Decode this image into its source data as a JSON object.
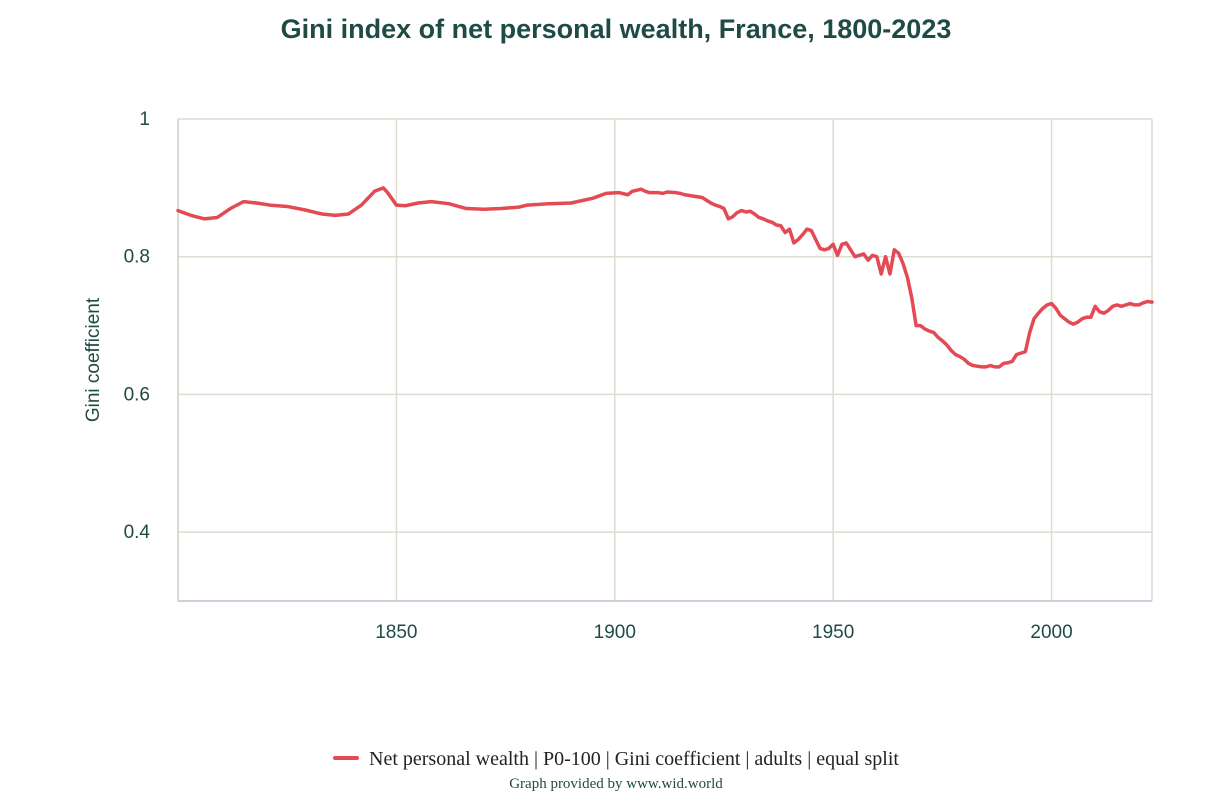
{
  "chart_data": {
    "type": "line",
    "title": "Gini index of net personal wealth, France, 1800-2023",
    "ylabel": "Gini coefficient",
    "xlabel": "",
    "xlim": [
      1800,
      2023
    ],
    "ylim": [
      0.3,
      1.0
    ],
    "x_ticks": [
      1850,
      1900,
      1950,
      2000
    ],
    "x_tick_labels": [
      "1850",
      "1900",
      "1950",
      "2000"
    ],
    "y_ticks": [
      0.4,
      0.6,
      0.8,
      1.0
    ],
    "y_tick_labels": [
      "0.4",
      "0.6",
      "0.8",
      "1"
    ],
    "grid": true,
    "legend_position": "bottom",
    "series": [
      {
        "name": "Net personal wealth | P0-100 | Gini coefficient | adults | equal split",
        "color": "#e34a53",
        "x": [
          1800,
          1803,
          1806,
          1809,
          1812,
          1815,
          1818,
          1821,
          1825,
          1829,
          1833,
          1836,
          1839,
          1842,
          1845,
          1847,
          1848,
          1850,
          1852,
          1855,
          1858,
          1862,
          1866,
          1870,
          1874,
          1878,
          1880,
          1885,
          1890,
          1895,
          1898,
          1901,
          1903,
          1904,
          1906,
          1907,
          1908,
          1910,
          1911,
          1912,
          1914,
          1915,
          1916,
          1918,
          1920,
          1921,
          1922,
          1923,
          1924,
          1925,
          1926,
          1927,
          1928,
          1929,
          1930,
          1931,
          1932,
          1933,
          1934,
          1935,
          1936,
          1937,
          1938,
          1939,
          1940,
          1941,
          1942,
          1943,
          1944,
          1945,
          1946,
          1947,
          1948,
          1949,
          1950,
          1951,
          1952,
          1953,
          1954,
          1955,
          1956,
          1957,
          1958,
          1959,
          1960,
          1961,
          1962,
          1963,
          1964,
          1965,
          1966,
          1967,
          1968,
          1969,
          1970,
          1971,
          1972,
          1973,
          1974,
          1975,
          1976,
          1977,
          1978,
          1979,
          1980,
          1981,
          1982,
          1983,
          1984,
          1985,
          1986,
          1987,
          1988,
          1989,
          1990,
          1991,
          1992,
          1993,
          1994,
          1995,
          1996,
          1997,
          1998,
          1999,
          2000,
          2001,
          2002,
          2003,
          2004,
          2005,
          2006,
          2007,
          2008,
          2009,
          2010,
          2011,
          2012,
          2013,
          2014,
          2015,
          2016,
          2017,
          2018,
          2019,
          2020,
          2021,
          2022,
          2023
        ],
        "values": [
          0.867,
          0.86,
          0.855,
          0.857,
          0.87,
          0.88,
          0.878,
          0.875,
          0.873,
          0.868,
          0.862,
          0.86,
          0.862,
          0.875,
          0.895,
          0.9,
          0.893,
          0.875,
          0.874,
          0.878,
          0.88,
          0.877,
          0.87,
          0.869,
          0.87,
          0.872,
          0.875,
          0.877,
          0.878,
          0.885,
          0.892,
          0.893,
          0.89,
          0.895,
          0.898,
          0.895,
          0.893,
          0.893,
          0.892,
          0.894,
          0.893,
          0.892,
          0.89,
          0.888,
          0.886,
          0.882,
          0.878,
          0.875,
          0.873,
          0.87,
          0.855,
          0.858,
          0.864,
          0.867,
          0.865,
          0.866,
          0.862,
          0.857,
          0.855,
          0.852,
          0.85,
          0.846,
          0.845,
          0.835,
          0.84,
          0.82,
          0.825,
          0.832,
          0.84,
          0.838,
          0.825,
          0.812,
          0.81,
          0.812,
          0.818,
          0.802,
          0.818,
          0.82,
          0.81,
          0.8,
          0.802,
          0.804,
          0.795,
          0.802,
          0.8,
          0.775,
          0.8,
          0.775,
          0.81,
          0.805,
          0.79,
          0.77,
          0.74,
          0.7,
          0.7,
          0.695,
          0.692,
          0.69,
          0.683,
          0.678,
          0.672,
          0.664,
          0.658,
          0.655,
          0.651,
          0.645,
          0.642,
          0.641,
          0.64,
          0.64,
          0.642,
          0.64,
          0.64,
          0.645,
          0.646,
          0.648,
          0.658,
          0.66,
          0.662,
          0.69,
          0.71,
          0.718,
          0.725,
          0.73,
          0.732,
          0.725,
          0.715,
          0.71,
          0.705,
          0.702,
          0.705,
          0.71,
          0.712,
          0.712,
          0.728,
          0.72,
          0.718,
          0.722,
          0.728,
          0.73,
          0.728,
          0.73,
          0.732,
          0.73,
          0.73,
          0.733,
          0.735,
          0.734
        ]
      }
    ]
  },
  "credit": "Graph provided by www.wid.world"
}
